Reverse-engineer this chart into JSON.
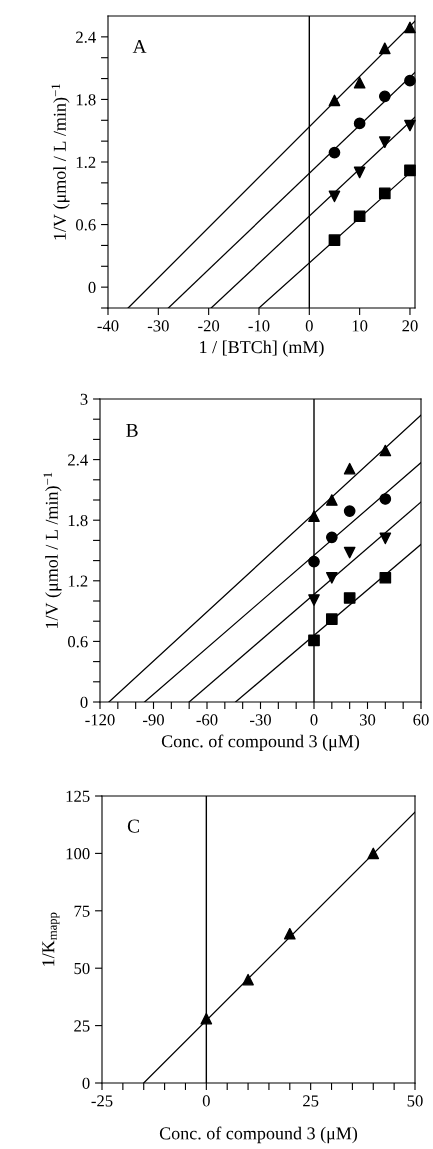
{
  "chart_data": [
    {
      "type": "scatter",
      "xlabel": "1 / [BTCh] (mM)",
      "ylabel": "1/V (μmol / L /min)$^{−1}$",
      "annotations": [
        "A"
      ],
      "xlim": [
        -40,
        21
      ],
      "ylim": [
        -0.2,
        2.6
      ],
      "xticks": [
        -40,
        -30,
        -20,
        -10,
        0,
        10,
        20
      ],
      "yticks": [
        {
          "value": -0.2,
          "label": null
        },
        0,
        {
          "value": 0.2,
          "label": null
        },
        {
          "value": 0.4,
          "label": null
        },
        0.6,
        {
          "value": 0.8,
          "label": null
        },
        {
          "value": 1.0,
          "label": null
        },
        1.2,
        {
          "value": 1.4,
          "label": null
        },
        {
          "value": 1.6,
          "label": null
        },
        1.8,
        {
          "value": 2.0,
          "label": null
        },
        {
          "value": 2.2,
          "label": null
        },
        2.4
      ],
      "ref_lines": [
        {
          "axis": "x",
          "value": 0,
          "color": "#000000"
        }
      ],
      "series": [
        {
          "marker": "triangle",
          "color": "#000000",
          "x": [
            5,
            10,
            15,
            20
          ],
          "values": [
            1.79,
            1.96,
            2.29,
            2.49
          ]
        },
        {
          "marker": "circle",
          "color": "#000000",
          "x": [
            5,
            10,
            15,
            20
          ],
          "values": [
            1.29,
            1.57,
            1.83,
            1.98
          ]
        },
        {
          "marker": "triangle_down",
          "color": "#000000",
          "x": [
            5,
            10,
            15,
            20
          ],
          "values": [
            0.87,
            1.1,
            1.39,
            1.55
          ]
        },
        {
          "marker": "square",
          "color": "#000000",
          "x": [
            5,
            10,
            15,
            20
          ],
          "values": [
            0.45,
            0.68,
            0.9,
            1.12
          ]
        },
        {
          "type": "line",
          "marker": "none",
          "color": "#000000",
          "x": [
            -36,
            21
          ],
          "values": [
            -0.2,
            2.55
          ]
        },
        {
          "type": "line",
          "marker": "none",
          "color": "#000000",
          "x": [
            -28,
            21
          ],
          "values": [
            -0.2,
            2.06
          ]
        },
        {
          "type": "line",
          "marker": "none",
          "color": "#000000",
          "x": [
            -19.5,
            21
          ],
          "values": [
            -0.2,
            1.63
          ]
        },
        {
          "type": "line",
          "marker": "none",
          "color": "#000000",
          "x": [
            -10,
            21
          ],
          "values": [
            -0.2,
            1.14
          ]
        }
      ]
    },
    {
      "type": "scatter",
      "xlabel": "Conc. of compound 3 (μM)",
      "ylabel": "1/V (μmol / L /min)$^{−1}$",
      "annotations": [
        "B"
      ],
      "xlim": [
        -120,
        60
      ],
      "ylim": [
        0,
        3
      ],
      "xticks": [
        -120,
        {
          "value": -110,
          "label": null
        },
        {
          "value": -100,
          "label": null
        },
        -90,
        {
          "value": -80,
          "label": null
        },
        {
          "value": -70,
          "label": null
        },
        -60,
        {
          "value": -50,
          "label": null
        },
        {
          "value": -40,
          "label": null
        },
        -30,
        {
          "value": -20,
          "label": null
        },
        {
          "value": -10,
          "label": null
        },
        0,
        {
          "value": 10,
          "label": null
        },
        {
          "value": 20,
          "label": null
        },
        30,
        {
          "value": 40,
          "label": null
        },
        {
          "value": 50,
          "label": null
        },
        60
      ],
      "yticks": [
        0,
        {
          "value": 0.2,
          "label": null
        },
        {
          "value": 0.4,
          "label": null
        },
        0.6,
        {
          "value": 0.8,
          "label": null
        },
        {
          "value": 1.0,
          "label": null
        },
        1.2,
        {
          "value": 1.4,
          "label": null
        },
        {
          "value": 1.6,
          "label": null
        },
        1.8,
        {
          "value": 2.0,
          "label": null
        },
        {
          "value": 2.2,
          "label": null
        },
        2.4,
        {
          "value": 2.6,
          "label": null
        },
        {
          "value": 2.8,
          "label": null
        },
        3
      ],
      "ref_lines": [
        {
          "axis": "x",
          "value": 0,
          "color": "#000000"
        }
      ],
      "series": [
        {
          "marker": "triangle",
          "color": "#000000",
          "x": [
            0,
            10,
            20,
            40
          ],
          "values": [
            1.84,
            2.0,
            2.31,
            2.49
          ]
        },
        {
          "marker": "circle",
          "color": "#000000",
          "x": [
            0,
            10,
            20,
            40
          ],
          "values": [
            1.39,
            1.63,
            1.89,
            2.01
          ]
        },
        {
          "marker": "triangle_down",
          "color": "#000000",
          "x": [
            0,
            10,
            20,
            40
          ],
          "values": [
            1.01,
            1.23,
            1.48,
            1.62
          ]
        },
        {
          "marker": "square",
          "color": "#000000",
          "x": [
            0,
            10,
            20,
            40
          ],
          "values": [
            0.61,
            0.82,
            1.03,
            1.23
          ]
        },
        {
          "type": "line",
          "marker": "none",
          "color": "#000000",
          "x": [
            -115,
            60
          ],
          "values": [
            0,
            2.84
          ]
        },
        {
          "type": "line",
          "marker": "none",
          "color": "#000000",
          "x": [
            -95,
            60
          ],
          "values": [
            0,
            2.37
          ]
        },
        {
          "type": "line",
          "marker": "none",
          "color": "#000000",
          "x": [
            -70,
            60
          ],
          "values": [
            0,
            1.98
          ]
        },
        {
          "type": "line",
          "marker": "none",
          "color": "#000000",
          "x": [
            -44,
            60
          ],
          "values": [
            0,
            1.56
          ]
        }
      ]
    },
    {
      "type": "scatter",
      "xlabel": "Conc. of compound 3 (μM)",
      "ylabel": "1/K$_{mapp}$",
      "annotations": [
        "C"
      ],
      "xlim": [
        -25,
        50
      ],
      "ylim": [
        0,
        125
      ],
      "xticks": [
        -25,
        {
          "value": -20,
          "label": null
        },
        {
          "value": -15,
          "label": null
        },
        {
          "value": -10,
          "label": null
        },
        {
          "value": -5,
          "label": null
        },
        0,
        {
          "value": 5,
          "label": null
        },
        {
          "value": 10,
          "label": null
        },
        {
          "value": 15,
          "label": null
        },
        {
          "value": 20,
          "label": null
        },
        25,
        {
          "value": 30,
          "label": null
        },
        {
          "value": 35,
          "label": null
        },
        {
          "value": 40,
          "label": null
        },
        {
          "value": 45,
          "label": null
        },
        50
      ],
      "yticks": [
        0,
        25,
        50,
        75,
        100,
        125
      ],
      "ref_lines": [
        {
          "axis": "x",
          "value": 0,
          "color": "#000000"
        }
      ],
      "series": [
        {
          "marker": "triangle",
          "color": "#000000",
          "x": [
            0,
            10,
            20,
            40
          ],
          "values": [
            28,
            45,
            65,
            100
          ]
        },
        {
          "type": "line",
          "marker": "none",
          "color": "#000000",
          "x": [
            -15,
            50
          ],
          "values": [
            0,
            118
          ]
        }
      ]
    }
  ]
}
